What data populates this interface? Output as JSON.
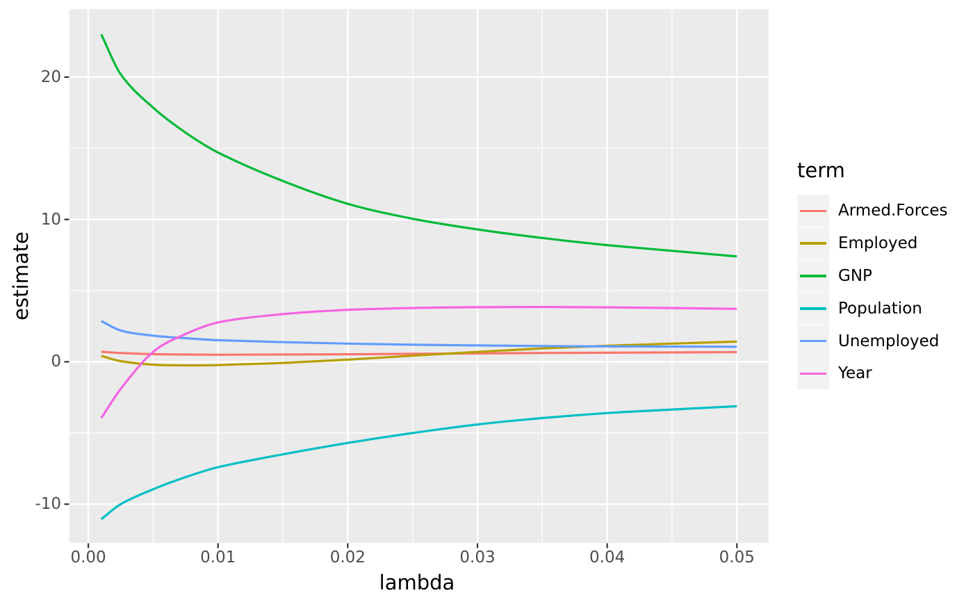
{
  "chart_data": {
    "type": "line",
    "title": "",
    "xlabel": "lambda",
    "ylabel": "estimate",
    "legend_title": "term",
    "legend_position": "right",
    "grid": true,
    "panel_bg": "#EBEBEB",
    "plot_bg": "#FFFFFF",
    "grid_color": "#FFFFFF",
    "tick_mark_color": "#333333",
    "tick_label_color": "#4D4D4D",
    "legend_key_bg": "#F2F2F2",
    "xlim": [
      -0.00145,
      0.05245
    ],
    "ylim": [
      -12.72,
      24.78
    ],
    "x_ticks": [
      0,
      0.01,
      0.02,
      0.03,
      0.04,
      0.05
    ],
    "x_tick_labels": [
      "0.00",
      "0.01",
      "0.02",
      "0.03",
      "0.04",
      "0.05"
    ],
    "x_minor_ticks": [
      0.005,
      0.015,
      0.025,
      0.035,
      0.045
    ],
    "y_ticks": [
      -10,
      0,
      10,
      20
    ],
    "y_tick_labels": [
      "-10",
      "0",
      "10",
      "20"
    ],
    "y_minor_ticks": [
      -5,
      5,
      15
    ],
    "x": [
      0.001,
      0.0025,
      0.005,
      0.0075,
      0.01,
      0.015,
      0.02,
      0.025,
      0.03,
      0.035,
      0.04,
      0.045,
      0.05
    ],
    "series": [
      {
        "name": "Armed.Forces",
        "color": "#F8766D",
        "values": [
          0.71,
          0.62,
          0.54,
          0.51,
          0.5,
          0.51,
          0.53,
          0.56,
          0.59,
          0.62,
          0.64,
          0.66,
          0.68
        ]
      },
      {
        "name": "Employed",
        "color": "#B79F00",
        "values": [
          0.41,
          0.05,
          -0.2,
          -0.25,
          -0.23,
          -0.08,
          0.15,
          0.43,
          0.7,
          0.94,
          1.13,
          1.28,
          1.42
        ]
      },
      {
        "name": "GNP",
        "color": "#00BA38",
        "values": [
          23.0,
          20.2,
          17.85,
          16.1,
          14.7,
          12.7,
          11.1,
          10.05,
          9.3,
          8.7,
          8.2,
          7.8,
          7.4
        ]
      },
      {
        "name": "Population",
        "color": "#00BFC4",
        "values": [
          -11.05,
          -10.0,
          -8.95,
          -8.1,
          -7.4,
          -6.5,
          -5.7,
          -5.0,
          -4.4,
          -3.95,
          -3.6,
          -3.35,
          -3.12
        ]
      },
      {
        "name": "Unemployed",
        "color": "#619CFF",
        "values": [
          2.86,
          2.2,
          1.84,
          1.66,
          1.52,
          1.38,
          1.28,
          1.2,
          1.15,
          1.11,
          1.08,
          1.07,
          1.06
        ]
      },
      {
        "name": "Year",
        "color": "#F564E3",
        "values": [
          -3.95,
          -1.9,
          0.7,
          1.95,
          2.77,
          3.35,
          3.65,
          3.78,
          3.84,
          3.85,
          3.83,
          3.78,
          3.72
        ]
      }
    ]
  }
}
